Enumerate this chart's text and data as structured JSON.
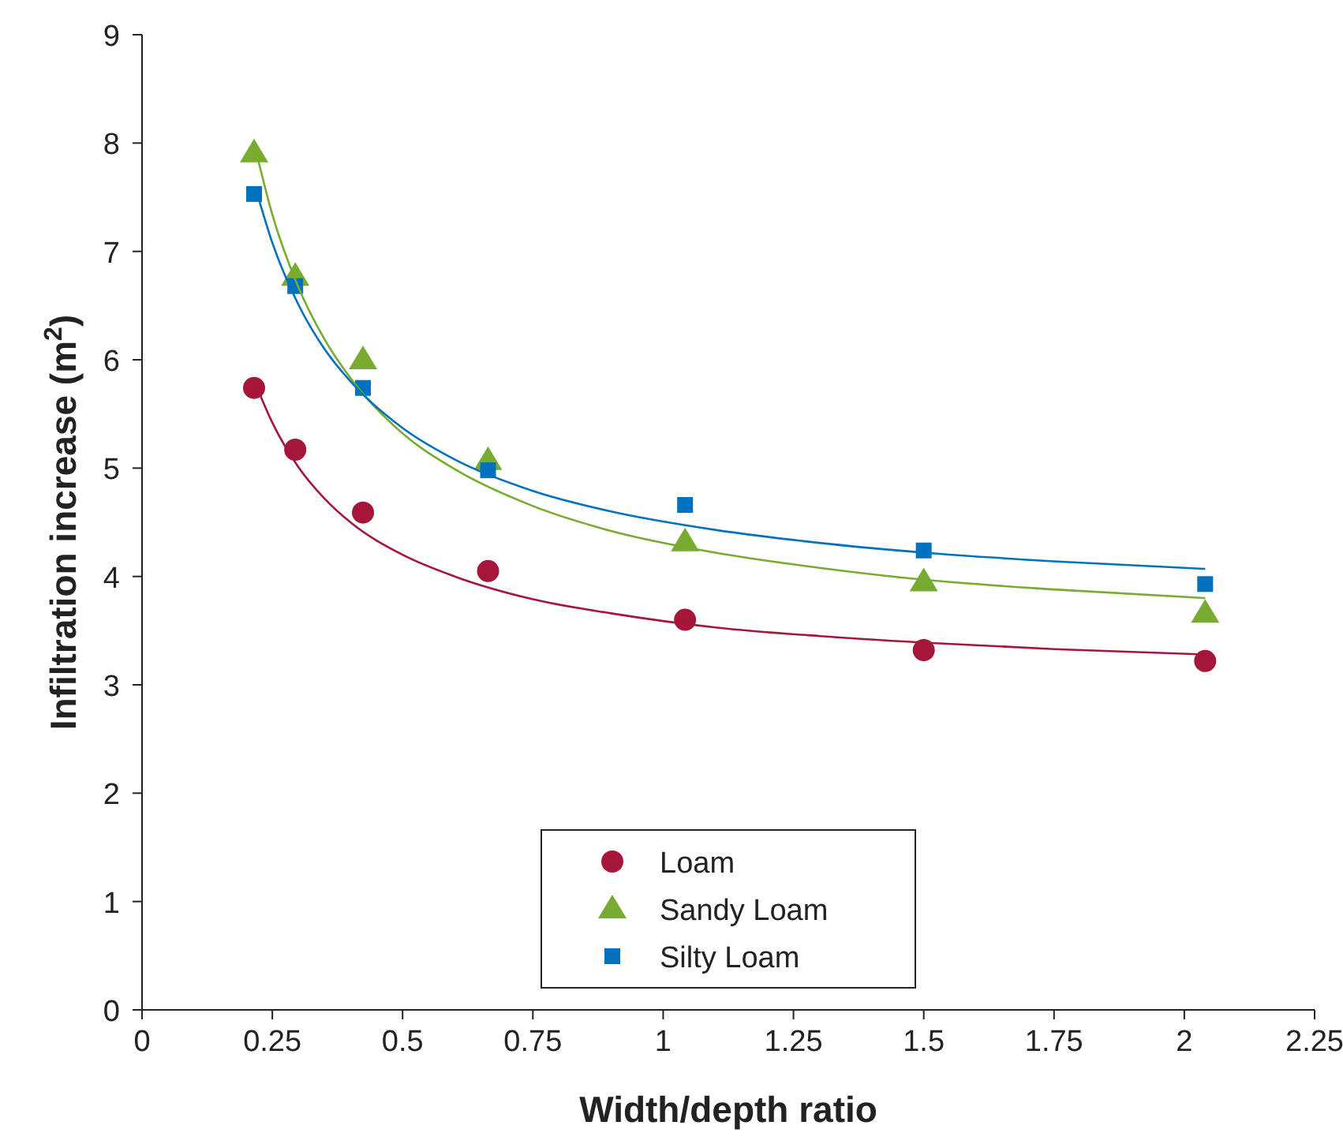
{
  "chart_data": {
    "type": "scatter",
    "xlabel": "Width/depth ratio",
    "ylabel": "Infiltration increase (m$^{2}$)",
    "xlim": [
      0,
      2.25
    ],
    "xticks": [
      0,
      0.25,
      0.5,
      0.75,
      1,
      1.25,
      1.5,
      1.75,
      2,
      2.25
    ],
    "ylim": [
      0,
      9
    ],
    "yticks": [
      0,
      1,
      2,
      3,
      4,
      5,
      6,
      7,
      8,
      9
    ],
    "grid": false,
    "legend": "bottom",
    "series": [
      {
        "name": "Loam",
        "color": "#a5163a",
        "marker": "circle",
        "x": [
          0.215,
          0.294,
          0.424,
          0.664,
          1.042,
          1.5,
          2.04
        ],
        "values": [
          5.74,
          5.17,
          4.59,
          4.05,
          3.6,
          3.32,
          3.22
        ]
      },
      {
        "name": "Sandy Loam",
        "color": "#77ac30",
        "marker": "triangle",
        "x": [
          0.215,
          0.294,
          0.424,
          0.664,
          1.042,
          1.5,
          2.04
        ],
        "values": [
          7.91,
          6.77,
          6.0,
          5.07,
          4.32,
          3.95,
          3.66
        ]
      },
      {
        "name": "Silty Loam",
        "color": "#0072bd",
        "marker": "square",
        "x": [
          0.215,
          0.294,
          0.424,
          0.664,
          1.042,
          1.5,
          2.04
        ],
        "values": [
          7.53,
          6.68,
          5.74,
          4.98,
          4.66,
          4.24,
          3.93
        ]
      },
      {
        "type": "line",
        "color": "#a5163a",
        "marker": "none",
        "x": [
          0.22,
          0.25,
          0.3,
          0.35,
          0.4,
          0.5,
          0.6,
          0.75,
          0.9,
          1.1,
          1.3,
          1.5,
          1.75,
          2.04
        ],
        "values": [
          5.75,
          5.42,
          5.01,
          4.72,
          4.5,
          4.2,
          4.0,
          3.79,
          3.66,
          3.53,
          3.45,
          3.39,
          3.33,
          3.28
        ]
      },
      {
        "type": "line",
        "color": "#77ac30",
        "marker": "none",
        "x": [
          0.22,
          0.25,
          0.3,
          0.35,
          0.4,
          0.5,
          0.6,
          0.75,
          0.9,
          1.1,
          1.3,
          1.5,
          1.75,
          2.04
        ],
        "values": [
          7.9,
          7.34,
          6.67,
          6.19,
          5.83,
          5.32,
          4.99,
          4.65,
          4.42,
          4.22,
          4.08,
          3.97,
          3.88,
          3.8
        ]
      },
      {
        "type": "line",
        "color": "#0072bd",
        "marker": "none",
        "x": [
          0.22,
          0.25,
          0.3,
          0.35,
          0.4,
          0.5,
          0.6,
          0.75,
          0.9,
          1.1,
          1.3,
          1.5,
          1.75,
          2.04
        ],
        "values": [
          7.55,
          7.08,
          6.51,
          6.1,
          5.8,
          5.37,
          5.08,
          4.79,
          4.6,
          4.43,
          4.31,
          4.22,
          4.14,
          4.07
        ]
      }
    ]
  }
}
